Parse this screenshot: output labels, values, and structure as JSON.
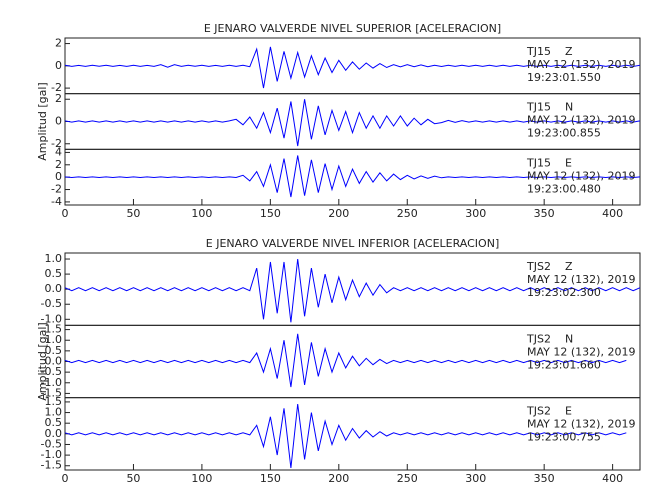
{
  "chart_data": [
    {
      "type": "line",
      "title": "E JENARO VALVERDE NIVEL SUPERIOR [ACELERACION]",
      "ylabel": "Amplitud [gal]",
      "color": "#0000ff",
      "xlim": [
        0,
        420
      ],
      "xticks": [
        0,
        50,
        100,
        150,
        200,
        250,
        300,
        350,
        400
      ],
      "x": [
        0,
        5,
        10,
        15,
        20,
        25,
        30,
        35,
        40,
        45,
        50,
        55,
        60,
        65,
        70,
        75,
        80,
        85,
        90,
        95,
        100,
        105,
        110,
        115,
        120,
        125,
        130,
        135,
        140,
        145,
        150,
        155,
        160,
        165,
        170,
        175,
        180,
        185,
        190,
        195,
        200,
        205,
        210,
        215,
        220,
        225,
        230,
        235,
        240,
        245,
        250,
        255,
        260,
        265,
        270,
        275,
        280,
        285,
        290,
        295,
        300,
        305,
        310,
        315,
        320,
        325,
        330,
        335,
        340,
        345,
        350,
        355,
        360,
        365,
        370,
        375,
        380,
        385,
        390,
        395,
        400,
        405,
        410,
        415,
        420
      ],
      "panels": [
        {
          "station": "TJ15",
          "component": "Z",
          "date": "MAY 12 (132), 2019",
          "time": "19:23:01.550",
          "ylim": [
            -2.5,
            2.5
          ],
          "yticks": [
            -2,
            0,
            2
          ],
          "values": [
            0.05,
            -0.05,
            0.04,
            -0.05,
            0.05,
            -0.04,
            0.05,
            -0.05,
            0.04,
            -0.05,
            0.05,
            -0.05,
            0.04,
            -0.05,
            0.1,
            -0.12,
            0.1,
            -0.05,
            0.05,
            -0.04,
            0.05,
            -0.05,
            0.04,
            -0.05,
            0.05,
            -0.05,
            0.06,
            -0.08,
            1.5,
            -2.0,
            1.7,
            -1.4,
            1.3,
            -1.1,
            1.2,
            -1.0,
            0.9,
            -0.8,
            0.7,
            -0.6,
            0.5,
            -0.4,
            0.35,
            -0.3,
            0.25,
            -0.2,
            0.2,
            -0.15,
            0.1,
            -0.1,
            0.1,
            -0.08,
            0.08,
            -0.08,
            0.06,
            -0.06,
            0.05,
            -0.05,
            0.05,
            -0.05,
            0.05,
            -0.05,
            0.05,
            -0.05,
            0.05,
            -0.05,
            0.05,
            -0.05,
            0.05,
            -0.05,
            0.05,
            -0.05,
            0.05,
            -0.05,
            0.05,
            -0.05,
            0.05,
            -0.05,
            0.05,
            -0.05,
            0.05,
            -0.05,
            0.05,
            -0.05,
            0.05
          ]
        },
        {
          "station": "TJ15",
          "component": "N",
          "date": "MAY 12 (132), 2019",
          "time": "19:23:00.855",
          "ylim": [
            -2.5,
            2.5
          ],
          "yticks": [
            -2,
            0,
            2
          ],
          "values": [
            0.05,
            -0.05,
            0.05,
            -0.05,
            0.05,
            -0.05,
            0.05,
            -0.05,
            0.05,
            -0.05,
            0.05,
            -0.05,
            0.05,
            -0.05,
            0.05,
            -0.05,
            0.05,
            -0.05,
            0.05,
            -0.05,
            0.05,
            -0.05,
            0.05,
            -0.05,
            0.05,
            0.2,
            -0.3,
            0.4,
            -0.6,
            0.8,
            -1.0,
            1.2,
            -1.5,
            1.8,
            -2.2,
            2.0,
            -1.6,
            1.4,
            -1.2,
            1.0,
            -0.8,
            0.9,
            -1.0,
            0.8,
            -0.6,
            0.5,
            -0.6,
            0.5,
            -0.4,
            0.5,
            -0.4,
            0.3,
            -0.3,
            0.2,
            -0.2,
            -0.1,
            0.1,
            -0.08,
            0.08,
            -0.05,
            0.05,
            -0.05,
            0.05,
            -0.05,
            0.05,
            -0.05,
            0.05,
            -0.05,
            0.05,
            -0.05,
            0.05,
            -0.05,
            0.05,
            -0.05,
            0.05,
            -0.05,
            0.05,
            -0.05,
            0.05,
            -0.05,
            0.05,
            -0.05,
            0.05,
            -0.05,
            0.05
          ]
        },
        {
          "station": "TJ15",
          "component": "E",
          "date": "MAY 12 (132), 2019",
          "time": "19:23:00.480",
          "ylim": [
            -4.5,
            4.5
          ],
          "yticks": [
            -4,
            -2,
            0,
            2,
            4
          ],
          "values": [
            0.05,
            -0.05,
            0.05,
            -0.05,
            0.05,
            -0.05,
            0.05,
            -0.05,
            0.05,
            -0.05,
            0.05,
            -0.05,
            0.05,
            -0.05,
            0.05,
            -0.05,
            0.05,
            -0.05,
            0.05,
            -0.05,
            0.05,
            -0.05,
            0.05,
            -0.05,
            0.05,
            -0.05,
            0.3,
            -0.6,
            0.9,
            -1.5,
            2.0,
            -2.5,
            3.0,
            -3.2,
            3.5,
            -3.0,
            2.8,
            -2.5,
            2.2,
            -2.0,
            1.8,
            -1.5,
            1.3,
            -1.0,
            0.9,
            -0.8,
            0.7,
            -0.6,
            0.5,
            -0.4,
            0.3,
            -0.3,
            0.2,
            -0.2,
            0.15,
            -0.1,
            0.05,
            -0.05,
            0.05,
            -0.05,
            0.05,
            -0.05,
            0.05,
            -0.05,
            0.05,
            -0.05,
            0.05,
            -0.05,
            0.05,
            -0.05,
            0.05,
            -0.05,
            0.05,
            -0.05,
            0.05,
            -0.05,
            0.05,
            -0.05,
            0.05,
            -0.05,
            0.05,
            -0.05,
            0.05,
            -0.05,
            0.05
          ]
        }
      ]
    },
    {
      "type": "line",
      "title": "E JENARO VALVERDE NIVEL INFERIOR [ACELERACION]",
      "ylabel": "Amplitud [gal]",
      "color": "#0000ff",
      "xlim": [
        0,
        420
      ],
      "xticks": [
        0,
        50,
        100,
        150,
        200,
        250,
        300,
        350,
        400
      ],
      "x": [
        0,
        5,
        10,
        15,
        20,
        25,
        30,
        35,
        40,
        45,
        50,
        55,
        60,
        65,
        70,
        75,
        80,
        85,
        90,
        95,
        100,
        105,
        110,
        115,
        120,
        125,
        130,
        135,
        140,
        145,
        150,
        155,
        160,
        165,
        170,
        175,
        180,
        185,
        190,
        195,
        200,
        205,
        210,
        215,
        220,
        225,
        230,
        235,
        240,
        245,
        250,
        255,
        260,
        265,
        270,
        275,
        280,
        285,
        290,
        295,
        300,
        305,
        310,
        315,
        320,
        325,
        330,
        335,
        340,
        345,
        350,
        355,
        360,
        365,
        370,
        375,
        380,
        385,
        390,
        395,
        400,
        405,
        410,
        415,
        420
      ],
      "panels": [
        {
          "station": "TJS2",
          "component": "Z",
          "date": "MAY 12 (132), 2019",
          "time": "19:23:02.300",
          "ylim": [
            -1.2,
            1.2
          ],
          "yticks": [
            {
              "value": -1,
              "label": "-1.0"
            },
            {
              "value": -0.5,
              "label": "-0.5"
            },
            {
              "value": 0,
              "label": "0.0"
            },
            {
              "value": 0.5,
              "label": "0.5"
            },
            {
              "value": 1,
              "label": "1.0"
            }
          ],
          "values": [
            0.05,
            -0.05,
            0.05,
            -0.05,
            0.05,
            -0.05,
            0.05,
            -0.05,
            0.05,
            -0.05,
            0.05,
            -0.05,
            0.05,
            -0.05,
            0.05,
            -0.05,
            0.05,
            -0.05,
            0.05,
            -0.05,
            0.05,
            -0.05,
            0.05,
            -0.05,
            0.05,
            -0.05,
            0.05,
            -0.05,
            0.7,
            -1.0,
            0.9,
            -0.8,
            0.9,
            -1.1,
            1.0,
            -0.9,
            0.7,
            -0.6,
            0.5,
            -0.45,
            0.4,
            -0.35,
            0.3,
            -0.25,
            0.2,
            -0.2,
            0.15,
            -0.12,
            0.05,
            -0.05,
            0.05,
            -0.05,
            0.05,
            -0.05,
            0.05,
            -0.05,
            0.05,
            -0.05,
            0.05,
            -0.05,
            0.05,
            -0.05,
            0.05,
            -0.05,
            0.05,
            -0.05,
            0.05,
            -0.05,
            0.05,
            -0.05,
            0.05,
            -0.05,
            0.05,
            -0.05,
            0.05,
            -0.05,
            0.05,
            -0.05,
            0.05,
            -0.05,
            0.05,
            -0.05,
            0.05,
            -0.05,
            0.05
          ]
        },
        {
          "station": "TJS2",
          "component": "N",
          "date": "MAY 12 (132), 2019",
          "time": "19:23:01.660",
          "ylim": [
            -1.7,
            1.7
          ],
          "yticks": [
            {
              "value": -1.5,
              "label": "-1.5"
            },
            {
              "value": -1,
              "label": "-1.0"
            },
            {
              "value": -0.5,
              "label": "-0.5"
            },
            {
              "value": 0,
              "label": "0.0"
            },
            {
              "value": 0.5,
              "label": "0.5"
            },
            {
              "value": 1,
              "label": "1.0"
            },
            {
              "value": 1.5,
              "label": "1.5"
            }
          ],
          "values": [
            0.05,
            -0.05,
            0.05,
            -0.05,
            0.05,
            -0.05,
            0.05,
            -0.05,
            0.05,
            -0.05,
            0.05,
            -0.05,
            0.05,
            -0.05,
            0.05,
            -0.05,
            0.05,
            -0.05,
            0.05,
            -0.05,
            0.05,
            -0.05,
            0.05,
            -0.05,
            0.05,
            -0.05,
            0.05,
            -0.05,
            0.4,
            -0.5,
            0.6,
            -0.8,
            1.0,
            -1.2,
            1.3,
            -1.1,
            0.9,
            -0.7,
            0.6,
            -0.5,
            0.4,
            -0.3,
            0.25,
            -0.2,
            0.15,
            -0.15,
            0.1,
            -0.1,
            0.05,
            -0.05,
            0.05,
            -0.05,
            0.05,
            -0.05,
            0.05,
            -0.05,
            0.05,
            -0.05,
            0.05,
            -0.05,
            0.05,
            -0.05,
            0.05,
            -0.05,
            0.05,
            -0.05,
            0.05,
            -0.05,
            0.05,
            -0.05,
            0.05,
            -0.05,
            0.05,
            -0.05,
            0.05,
            -0.05,
            0.05,
            -0.05,
            0.05,
            -0.05,
            0.05,
            -0.05,
            0.05
          ]
        },
        {
          "station": "TJS2",
          "component": "E",
          "date": "MAY 12 (132), 2019",
          "time": "19:23:00.755",
          "ylim": [
            -1.7,
            1.7
          ],
          "yticks": [
            {
              "value": -1.5,
              "label": "-1.5"
            },
            {
              "value": -1,
              "label": "-1.0"
            },
            {
              "value": -0.5,
              "label": "-0.5"
            },
            {
              "value": 0,
              "label": "0.0"
            },
            {
              "value": 0.5,
              "label": "0.5"
            },
            {
              "value": 1,
              "label": "1.0"
            },
            {
              "value": 1.5,
              "label": "1.5"
            }
          ],
          "values": [
            0.05,
            -0.05,
            0.05,
            -0.05,
            0.05,
            -0.05,
            0.05,
            -0.05,
            0.05,
            -0.05,
            0.05,
            -0.05,
            0.05,
            -0.05,
            0.05,
            -0.05,
            0.05,
            -0.05,
            0.05,
            -0.05,
            0.05,
            -0.05,
            0.05,
            -0.05,
            0.05,
            -0.05,
            0.05,
            -0.05,
            0.4,
            -0.6,
            0.8,
            -1.0,
            1.2,
            -1.6,
            1.4,
            -1.2,
            1.0,
            -0.8,
            0.6,
            -0.5,
            0.4,
            -0.3,
            0.25,
            -0.2,
            0.15,
            -0.15,
            0.1,
            -0.1,
            0.05,
            -0.05,
            0.05,
            -0.05,
            0.05,
            -0.05,
            0.05,
            -0.05,
            0.05,
            -0.05,
            0.05,
            -0.05,
            0.05,
            -0.05,
            0.05,
            -0.05,
            0.05,
            -0.05,
            0.05,
            -0.05,
            0.05,
            -0.05,
            0.05,
            -0.05,
            0.05,
            -0.05,
            0.05,
            -0.05,
            0.05,
            -0.05,
            0.05,
            -0.05,
            0.05,
            -0.05,
            0.05
          ]
        }
      ]
    }
  ]
}
